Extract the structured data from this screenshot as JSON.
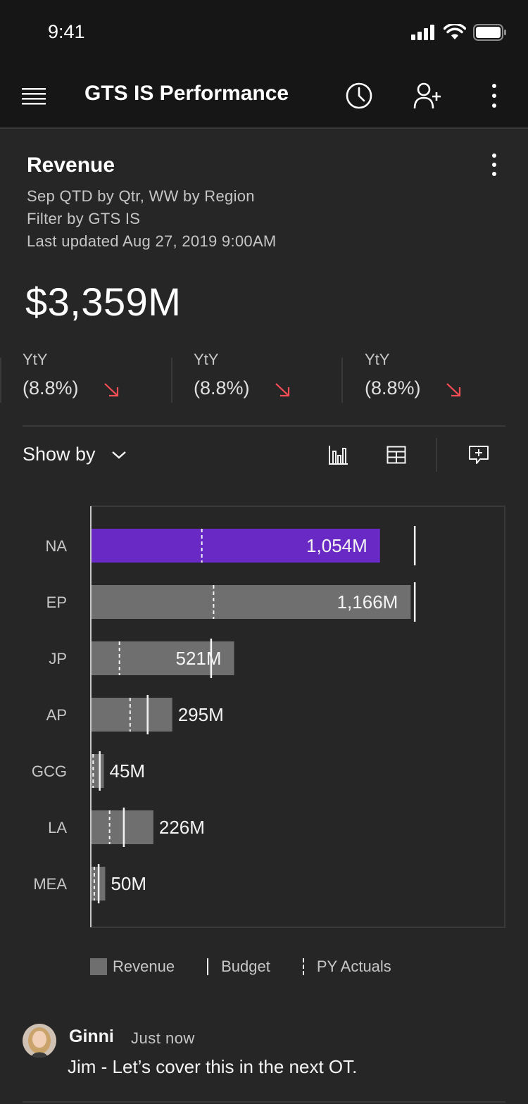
{
  "status_bar": {
    "time": "9:41"
  },
  "header": {
    "title": "GTS IS Performance",
    "icons": [
      "menu-icon",
      "clock-icon",
      "add-user-icon",
      "overflow-menu-icon"
    ]
  },
  "card": {
    "title": "Revenue",
    "subtitle_1": "Sep QTD by Qtr, WW by Region",
    "subtitle_2": "Filter by GTS IS",
    "last_updated": "Last updated Aug 27, 2019 9:00AM",
    "total": "$3,359M",
    "yty": [
      {
        "label": "YtY",
        "value": "(8.8%)",
        "trend": "down"
      },
      {
        "label": "YtY",
        "value": "(8.8%)",
        "trend": "down"
      },
      {
        "label": "YtY",
        "value": "(8.8%)",
        "trend": "down"
      }
    ],
    "show_by_label": "Show by"
  },
  "colors": {
    "accent": "#6929c4",
    "bar": "#6f6f6f",
    "trend_down": "#fa4d56"
  },
  "chart_data": {
    "type": "bar",
    "orientation": "horizontal",
    "categories": [
      "NA",
      "EP",
      "JP",
      "AP",
      "GCG",
      "LA",
      "MEA"
    ],
    "series": [
      {
        "name": "Revenue",
        "values": [
          1054,
          1166,
          521,
          295,
          45,
          226,
          50
        ]
      },
      {
        "name": "Budget",
        "values": [
          1181,
          1181,
          437,
          205,
          30,
          118,
          26
        ]
      },
      {
        "name": "PY Actuals",
        "values": [
          403,
          446,
          102,
          141,
          6,
          66,
          10
        ]
      }
    ],
    "data_labels": [
      "1,054M",
      "1,166M",
      "521M",
      "295M",
      "45M",
      "226M",
      "50M"
    ],
    "highlighted_category": "NA",
    "legend": [
      "Revenue",
      "Budget",
      "PY Actuals"
    ],
    "legend_position": "bottom"
  },
  "comment": {
    "author": "Ginni",
    "time": "Just now",
    "text": "Jim - Let’s cover this in the next OT."
  }
}
